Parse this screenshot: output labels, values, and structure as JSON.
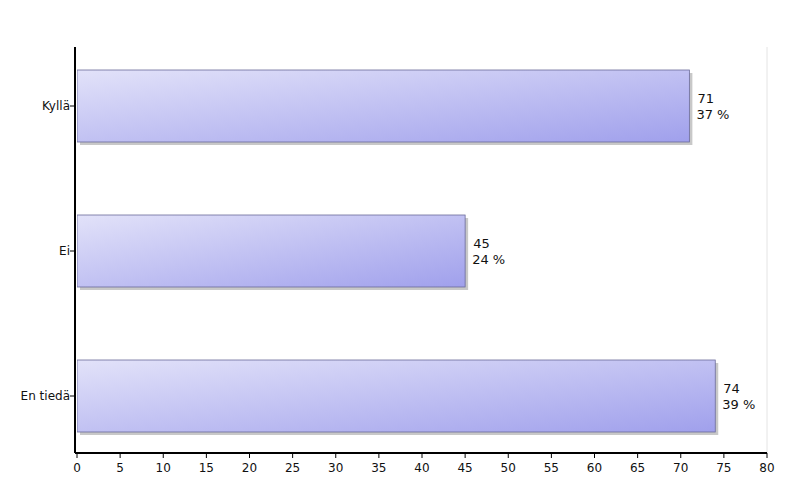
{
  "chart_data": {
    "type": "bar",
    "orientation": "horizontal",
    "categories": [
      "Kyllä",
      "Ei",
      "En tiedä"
    ],
    "values": [
      71,
      45,
      74
    ],
    "percent_labels": [
      "37 %",
      "24 %",
      "39 %"
    ],
    "data_labels": true,
    "color": "#a0a0ec",
    "xlim": [
      0,
      80
    ],
    "xticks": [
      0,
      5,
      10,
      15,
      20,
      25,
      30,
      35,
      40,
      45,
      50,
      55,
      60,
      65,
      70,
      75,
      80
    ],
    "grid": false
  }
}
